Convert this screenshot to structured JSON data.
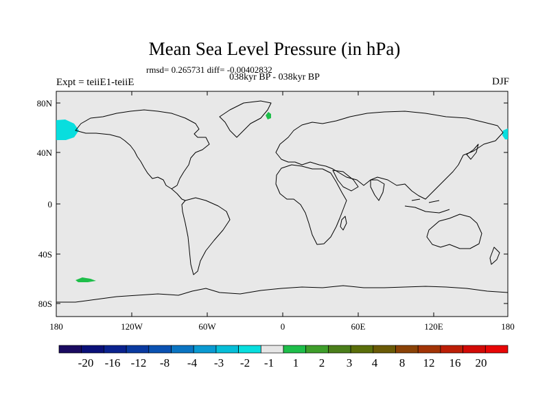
{
  "title": "Mean Sea Level Pressure (in hPa)",
  "stats": "rmsd= 0.265731 diff= -0.00402832",
  "subtitle": "038kyr BP - 038kyr BP",
  "left_label": "Expt = teiiE1-teiiE",
  "right_label": "DJF",
  "map": {
    "background": "#e8e8e8",
    "coastline_color": "#000000",
    "lon_ticks": [
      "180",
      "120W",
      "60W",
      "0",
      "60E",
      "120E",
      "180"
    ],
    "lat_ticks": [
      "80N",
      "40N",
      "0",
      "40S",
      "80S"
    ],
    "lon_range": [
      -180,
      180
    ],
    "lat_range": [
      -90,
      90
    ]
  },
  "colorbar": {
    "colors": [
      "#1a0a60",
      "#0a1078",
      "#0a228e",
      "#0a3aa0",
      "#0a52b2",
      "#0a74c2",
      "#0a9ad2",
      "#06bed8",
      "#08dede",
      "#e6e6e6",
      "#1ebe4a",
      "#3e9e2a",
      "#4a7e1a",
      "#5a6e0a",
      "#6a5a06",
      "#8a4206",
      "#a23406",
      "#bc1e06",
      "#d20a06",
      "#e80606"
    ],
    "labels": [
      "-20",
      "-16",
      "-12",
      "-8",
      "-4",
      "-3",
      "-2",
      "-1",
      "1",
      "2",
      "3",
      "4",
      "8",
      "12",
      "16",
      "20"
    ]
  },
  "anomalies": [
    {
      "label": "north-pacific-west",
      "color": "#08dede"
    },
    {
      "label": "north-pacific-east",
      "color": "#08dede"
    },
    {
      "label": "greenland-sea",
      "color": "#1ebe4a"
    },
    {
      "label": "south-pacific",
      "color": "#1ebe4a"
    }
  ]
}
